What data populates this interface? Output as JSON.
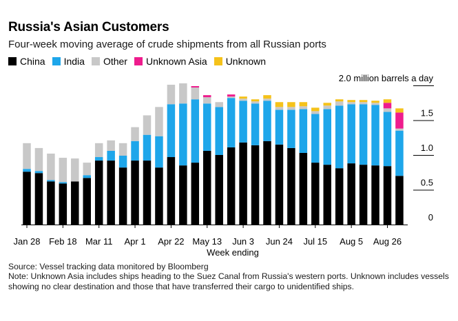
{
  "header": {
    "title": "Russia's Asian Customers",
    "subtitle": "Four-week moving average of crude shipments from all Russian ports"
  },
  "legend": [
    {
      "label": "China",
      "color": "#000000"
    },
    {
      "label": "India",
      "color": "#1ea6ea"
    },
    {
      "label": "Other",
      "color": "#c8c8c8"
    },
    {
      "label": "Unknown Asia",
      "color": "#ee1c8d"
    },
    {
      "label": "Unknown",
      "color": "#f5c21a"
    }
  ],
  "footer": {
    "source": "Source: Vessel tracking data monitored by Bloomberg",
    "note": "Note: Unknown Asia includes ships heading to the Suez Canal from Russia's western ports. Unknown includes vessels showing no clear destination and those that have transferred their cargo to unidentified ships."
  },
  "chart_data": {
    "type": "bar",
    "stacked": true,
    "xlabel": "Week ending",
    "ylabel": "2.0 million barrels a day",
    "ylim": [
      0,
      2.0
    ],
    "yticks": [
      "0",
      "0.5",
      "1.0",
      "1.5"
    ],
    "xtick_labels": [
      "Jan 28",
      "Feb 18",
      "Mar 11",
      "Apr 1",
      "Apr 22",
      "May 13",
      "Jun 3",
      "Jun 24",
      "Jul 15",
      "Aug 5",
      "Aug 26"
    ],
    "xtick_positions": [
      0,
      3,
      6,
      9,
      12,
      15,
      18,
      21,
      24,
      27,
      30
    ],
    "grid": false,
    "legend_position": "top-left",
    "series": [
      {
        "name": "China",
        "color": "#000000",
        "values": [
          0.76,
          0.74,
          0.62,
          0.59,
          0.62,
          0.67,
          0.92,
          0.92,
          0.82,
          0.92,
          0.92,
          0.82,
          0.97,
          0.85,
          0.89,
          1.06,
          1.0,
          1.11,
          1.18,
          1.14,
          1.2,
          1.15,
          1.1,
          1.03,
          0.89,
          0.86,
          0.81,
          0.88,
          0.86,
          0.85,
          0.84,
          0.7
        ]
      },
      {
        "name": "India",
        "color": "#1ea6ea",
        "values": [
          0.04,
          0.03,
          0.02,
          0.02,
          0.0,
          0.04,
          0.05,
          0.14,
          0.17,
          0.28,
          0.37,
          0.45,
          0.76,
          0.89,
          0.91,
          0.68,
          0.69,
          0.71,
          0.6,
          0.6,
          0.58,
          0.5,
          0.55,
          0.63,
          0.7,
          0.8,
          0.9,
          0.85,
          0.87,
          0.87,
          0.78,
          0.65
        ]
      },
      {
        "name": "Other",
        "color": "#c8c8c8",
        "values": [
          0.37,
          0.33,
          0.38,
          0.35,
          0.33,
          0.18,
          0.2,
          0.15,
          0.18,
          0.2,
          0.28,
          0.42,
          0.28,
          0.29,
          0.17,
          0.09,
          0.07,
          0.02,
          0.03,
          0.03,
          0.03,
          0.04,
          0.04,
          0.04,
          0.04,
          0.05,
          0.06,
          0.03,
          0.03,
          0.03,
          0.05,
          0.03
        ]
      },
      {
        "name": "Unknown Asia",
        "color": "#ee1c8d",
        "values": [
          0,
          0,
          0,
          0,
          0,
          0,
          0,
          0,
          0,
          0,
          0,
          0,
          0,
          0,
          0.02,
          0.03,
          0,
          0.03,
          0,
          0,
          0,
          0,
          0,
          0,
          0,
          0,
          0,
          0,
          0,
          0,
          0.08,
          0.23
        ]
      },
      {
        "name": "Unknown",
        "color": "#f5c21a",
        "values": [
          0,
          0,
          0,
          0,
          0,
          0,
          0,
          0,
          0,
          0,
          0,
          0,
          0,
          0,
          0,
          0,
          0,
          0,
          0.03,
          0.03,
          0.05,
          0.07,
          0.07,
          0.06,
          0.05,
          0.04,
          0.03,
          0.03,
          0.03,
          0.03,
          0.05,
          0.06
        ]
      }
    ]
  }
}
